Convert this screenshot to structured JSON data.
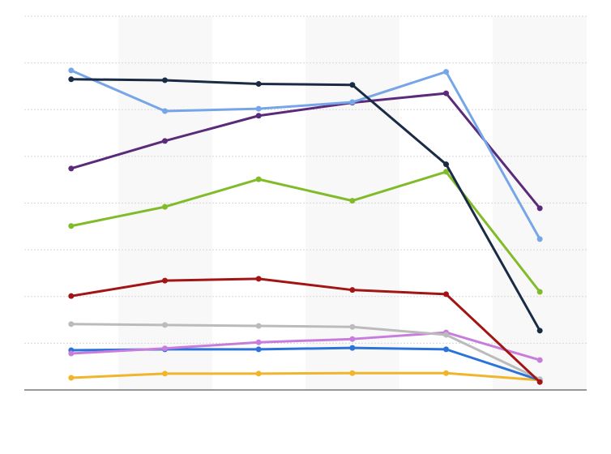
{
  "chart_data": {
    "type": "line",
    "categories": [
      null,
      null,
      null,
      null,
      null,
      null
    ],
    "ylim": [
      0,
      8
    ],
    "yticks": [
      1,
      2,
      3,
      4,
      5,
      6,
      7,
      8
    ],
    "grid": true,
    "series": [
      {
        "color": "#f0b52b",
        "values": [
          0.26,
          0.35,
          0.35,
          0.36,
          0.36,
          0.21
        ]
      },
      {
        "color": "#2b73d9",
        "values": [
          0.85,
          0.87,
          0.87,
          0.9,
          0.87,
          0.21
        ]
      },
      {
        "color": "#c87ddc",
        "values": [
          0.78,
          0.89,
          1.02,
          1.09,
          1.23,
          0.64
        ]
      },
      {
        "color": "#bbbbbb",
        "values": [
          1.41,
          1.39,
          1.37,
          1.35,
          1.18,
          0.23
        ]
      },
      {
        "color": "#a31515",
        "values": [
          2.01,
          2.34,
          2.38,
          2.14,
          2.05,
          0.17
        ]
      },
      {
        "color": "#82bb2a",
        "values": [
          3.51,
          3.92,
          4.51,
          4.05,
          4.67,
          2.1
        ]
      },
      {
        "color": "#5b2a7a",
        "values": [
          4.74,
          5.33,
          5.87,
          6.15,
          6.35,
          3.89
        ]
      },
      {
        "color": "#77a6e8",
        "values": [
          6.84,
          5.97,
          6.02,
          6.16,
          6.81,
          3.23
        ]
      },
      {
        "color": "#1a2b45",
        "values": [
          6.65,
          6.63,
          6.55,
          6.53,
          4.83,
          1.27
        ]
      }
    ]
  }
}
